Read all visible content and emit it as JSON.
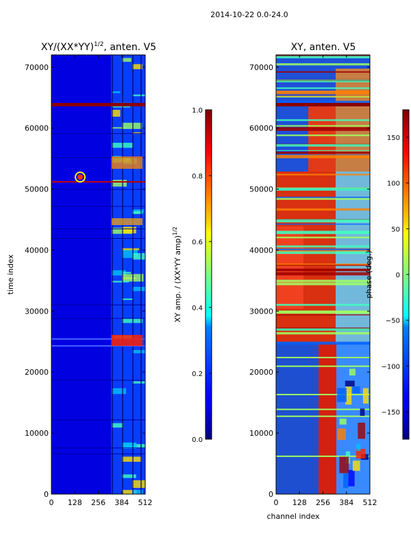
{
  "figure_title": "2014-10-22 0.0-24.0",
  "chart_data": [
    {
      "type": "heatmap",
      "title": "XY/(XX*YY)^1/2, anten. V5",
      "title_main": "XY/(XX*YY)",
      "title_exp": "1/2",
      "title_tail": ", anten. V5",
      "xlabel": "",
      "ylabel": "time index",
      "xlim": [
        0,
        512
      ],
      "ylim": [
        0,
        72000
      ],
      "xticks": [
        0,
        128,
        256,
        384,
        512
      ],
      "yticks": [
        0,
        10000,
        20000,
        30000,
        40000,
        50000,
        60000,
        70000
      ],
      "colorbar": {
        "label": "XY amp. / (XX*YY amp)^1/2",
        "label_main": "XY amp. / (XX*YY amp)",
        "label_exp": "1/2",
        "range": [
          0.0,
          1.0
        ],
        "ticks": [
          0.0,
          0.2,
          0.4,
          0.6,
          0.8,
          1.0
        ],
        "tick_labels": [
          "0.0",
          "0.2",
          "0.4",
          "0.6",
          "0.8",
          "1.0"
        ]
      }
    },
    {
      "type": "heatmap",
      "title": "XY, anten. V5",
      "xlabel": "channel index",
      "ylabel": "",
      "xlim": [
        0,
        512
      ],
      "ylim": [
        0,
        72000
      ],
      "xticks": [
        0,
        128,
        256,
        384,
        512
      ],
      "yticks": [
        0,
        10000,
        20000,
        30000,
        40000,
        50000,
        60000,
        70000
      ],
      "colorbar": {
        "label": "phase (deg.)",
        "range": [
          -180,
          180
        ],
        "ticks": [
          -150,
          -100,
          -50,
          0,
          50,
          100,
          150
        ],
        "tick_labels": [
          "−150",
          "−100",
          "−50",
          "0",
          "50",
          "100",
          "150"
        ]
      }
    }
  ],
  "colors": {
    "jet_low": "#00007f",
    "jet_high": "#7f0000",
    "background": "#ffffff"
  }
}
